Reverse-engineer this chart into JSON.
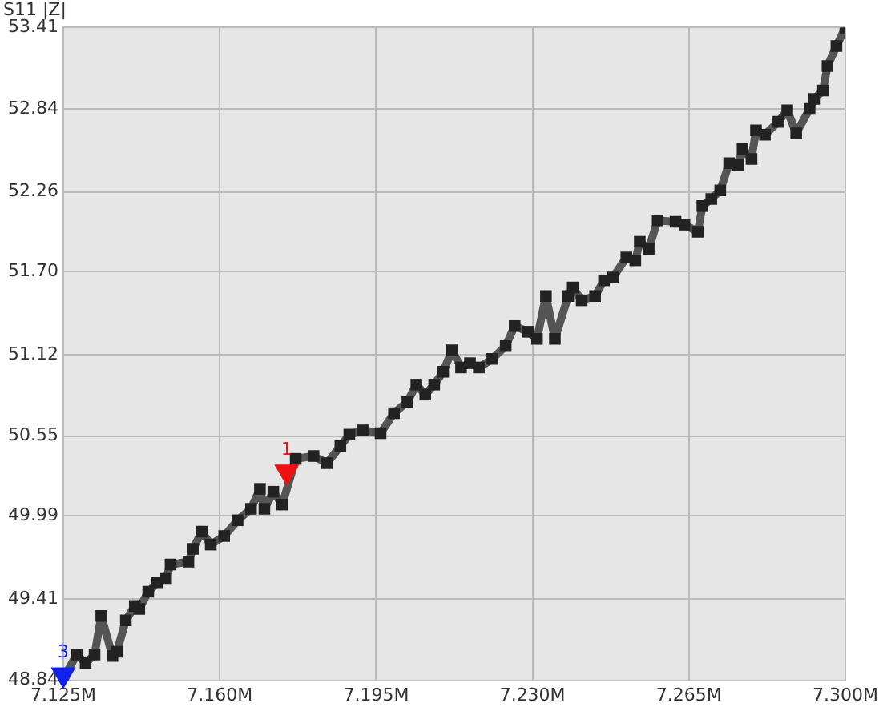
{
  "chart_data": {
    "type": "line",
    "title": "S11 |Z|",
    "x": [
      7.125,
      7.128,
      7.13,
      7.132,
      7.1335,
      7.136,
      7.137,
      7.139,
      7.141,
      7.142,
      7.144,
      7.146,
      7.148,
      7.149,
      7.153,
      7.154,
      7.156,
      7.158,
      7.161,
      7.164,
      7.167,
      7.169,
      7.17,
      7.172,
      7.174,
      7.177,
      7.181,
      7.184,
      7.187,
      7.189,
      7.192,
      7.196,
      7.199,
      7.202,
      7.204,
      7.206,
      7.208,
      7.21,
      7.212,
      7.214,
      7.216,
      7.218,
      7.221,
      7.224,
      7.226,
      7.229,
      7.231,
      7.233,
      7.235,
      7.238,
      7.239,
      7.241,
      7.244,
      7.246,
      7.248,
      7.251,
      7.253,
      7.254,
      7.256,
      7.258,
      7.262,
      7.264,
      7.267,
      7.268,
      7.27,
      7.272,
      7.274,
      7.276,
      7.277,
      7.279,
      7.28,
      7.282,
      7.285,
      7.287,
      7.289,
      7.292,
      7.293,
      7.295,
      7.296,
      7.298,
      7.3
    ],
    "series": [
      {
        "color": "#555555",
        "values": [
          48.85,
          49.02,
          48.96,
          49.02,
          49.29,
          49.01,
          49.04,
          49.26,
          49.36,
          49.34,
          49.46,
          49.52,
          49.55,
          49.65,
          49.67,
          49.76,
          49.88,
          49.79,
          49.85,
          49.96,
          50.04,
          50.18,
          50.04,
          50.16,
          50.07,
          50.39,
          50.41,
          50.36,
          50.48,
          50.56,
          50.59,
          50.57,
          50.71,
          50.79,
          50.91,
          50.84,
          50.91,
          51.0,
          51.15,
          51.03,
          51.06,
          51.03,
          51.09,
          51.18,
          51.32,
          51.28,
          51.23,
          51.53,
          51.23,
          51.53,
          51.59,
          51.5,
          51.53,
          51.64,
          51.66,
          51.8,
          51.78,
          51.91,
          51.86,
          52.06,
          52.05,
          52.03,
          51.98,
          52.16,
          52.21,
          52.27,
          52.46,
          52.45,
          52.56,
          52.49,
          52.69,
          52.66,
          52.75,
          52.83,
          52.67,
          52.84,
          52.91,
          52.97,
          53.14,
          53.28,
          53.41
        ]
      },
      {
        "type": "scatter",
        "name": "1",
        "color": "#ee1111",
        "marker": "triangle",
        "x": [
          7.175
        ],
        "values": [
          50.3
        ]
      },
      {
        "type": "scatter",
        "name": "3",
        "color": "#1122ee",
        "marker": "triangle",
        "x": [
          7.125
        ],
        "values": [
          48.88
        ]
      }
    ],
    "xlim": [
      7.125,
      7.3
    ],
    "xticks": [
      {
        "value": 7.125,
        "label": "7.125M"
      },
      {
        "value": 7.16,
        "label": "7.160M"
      },
      {
        "value": 7.195,
        "label": "7.195M"
      },
      {
        "value": 7.23,
        "label": "7.230M"
      },
      {
        "value": 7.265,
        "label": "7.265M"
      },
      {
        "value": 7.3,
        "label": "7.300M"
      }
    ],
    "ylim": [
      48.84,
      53.41
    ],
    "yticks": [
      {
        "value": 48.84,
        "label": "48.84"
      },
      {
        "value": 49.41,
        "label": "49.41"
      },
      {
        "value": 49.99,
        "label": "49.99"
      },
      {
        "value": 50.55,
        "label": "50.55"
      },
      {
        "value": 51.12,
        "label": "51.12"
      },
      {
        "value": 51.7,
        "label": "51.70"
      },
      {
        "value": 52.26,
        "label": "52.26"
      },
      {
        "value": 52.84,
        "label": "52.84"
      },
      {
        "value": 53.41,
        "label": "53.41"
      }
    ],
    "grid": true,
    "legend": false,
    "marker": "square",
    "line_style": "solid"
  }
}
